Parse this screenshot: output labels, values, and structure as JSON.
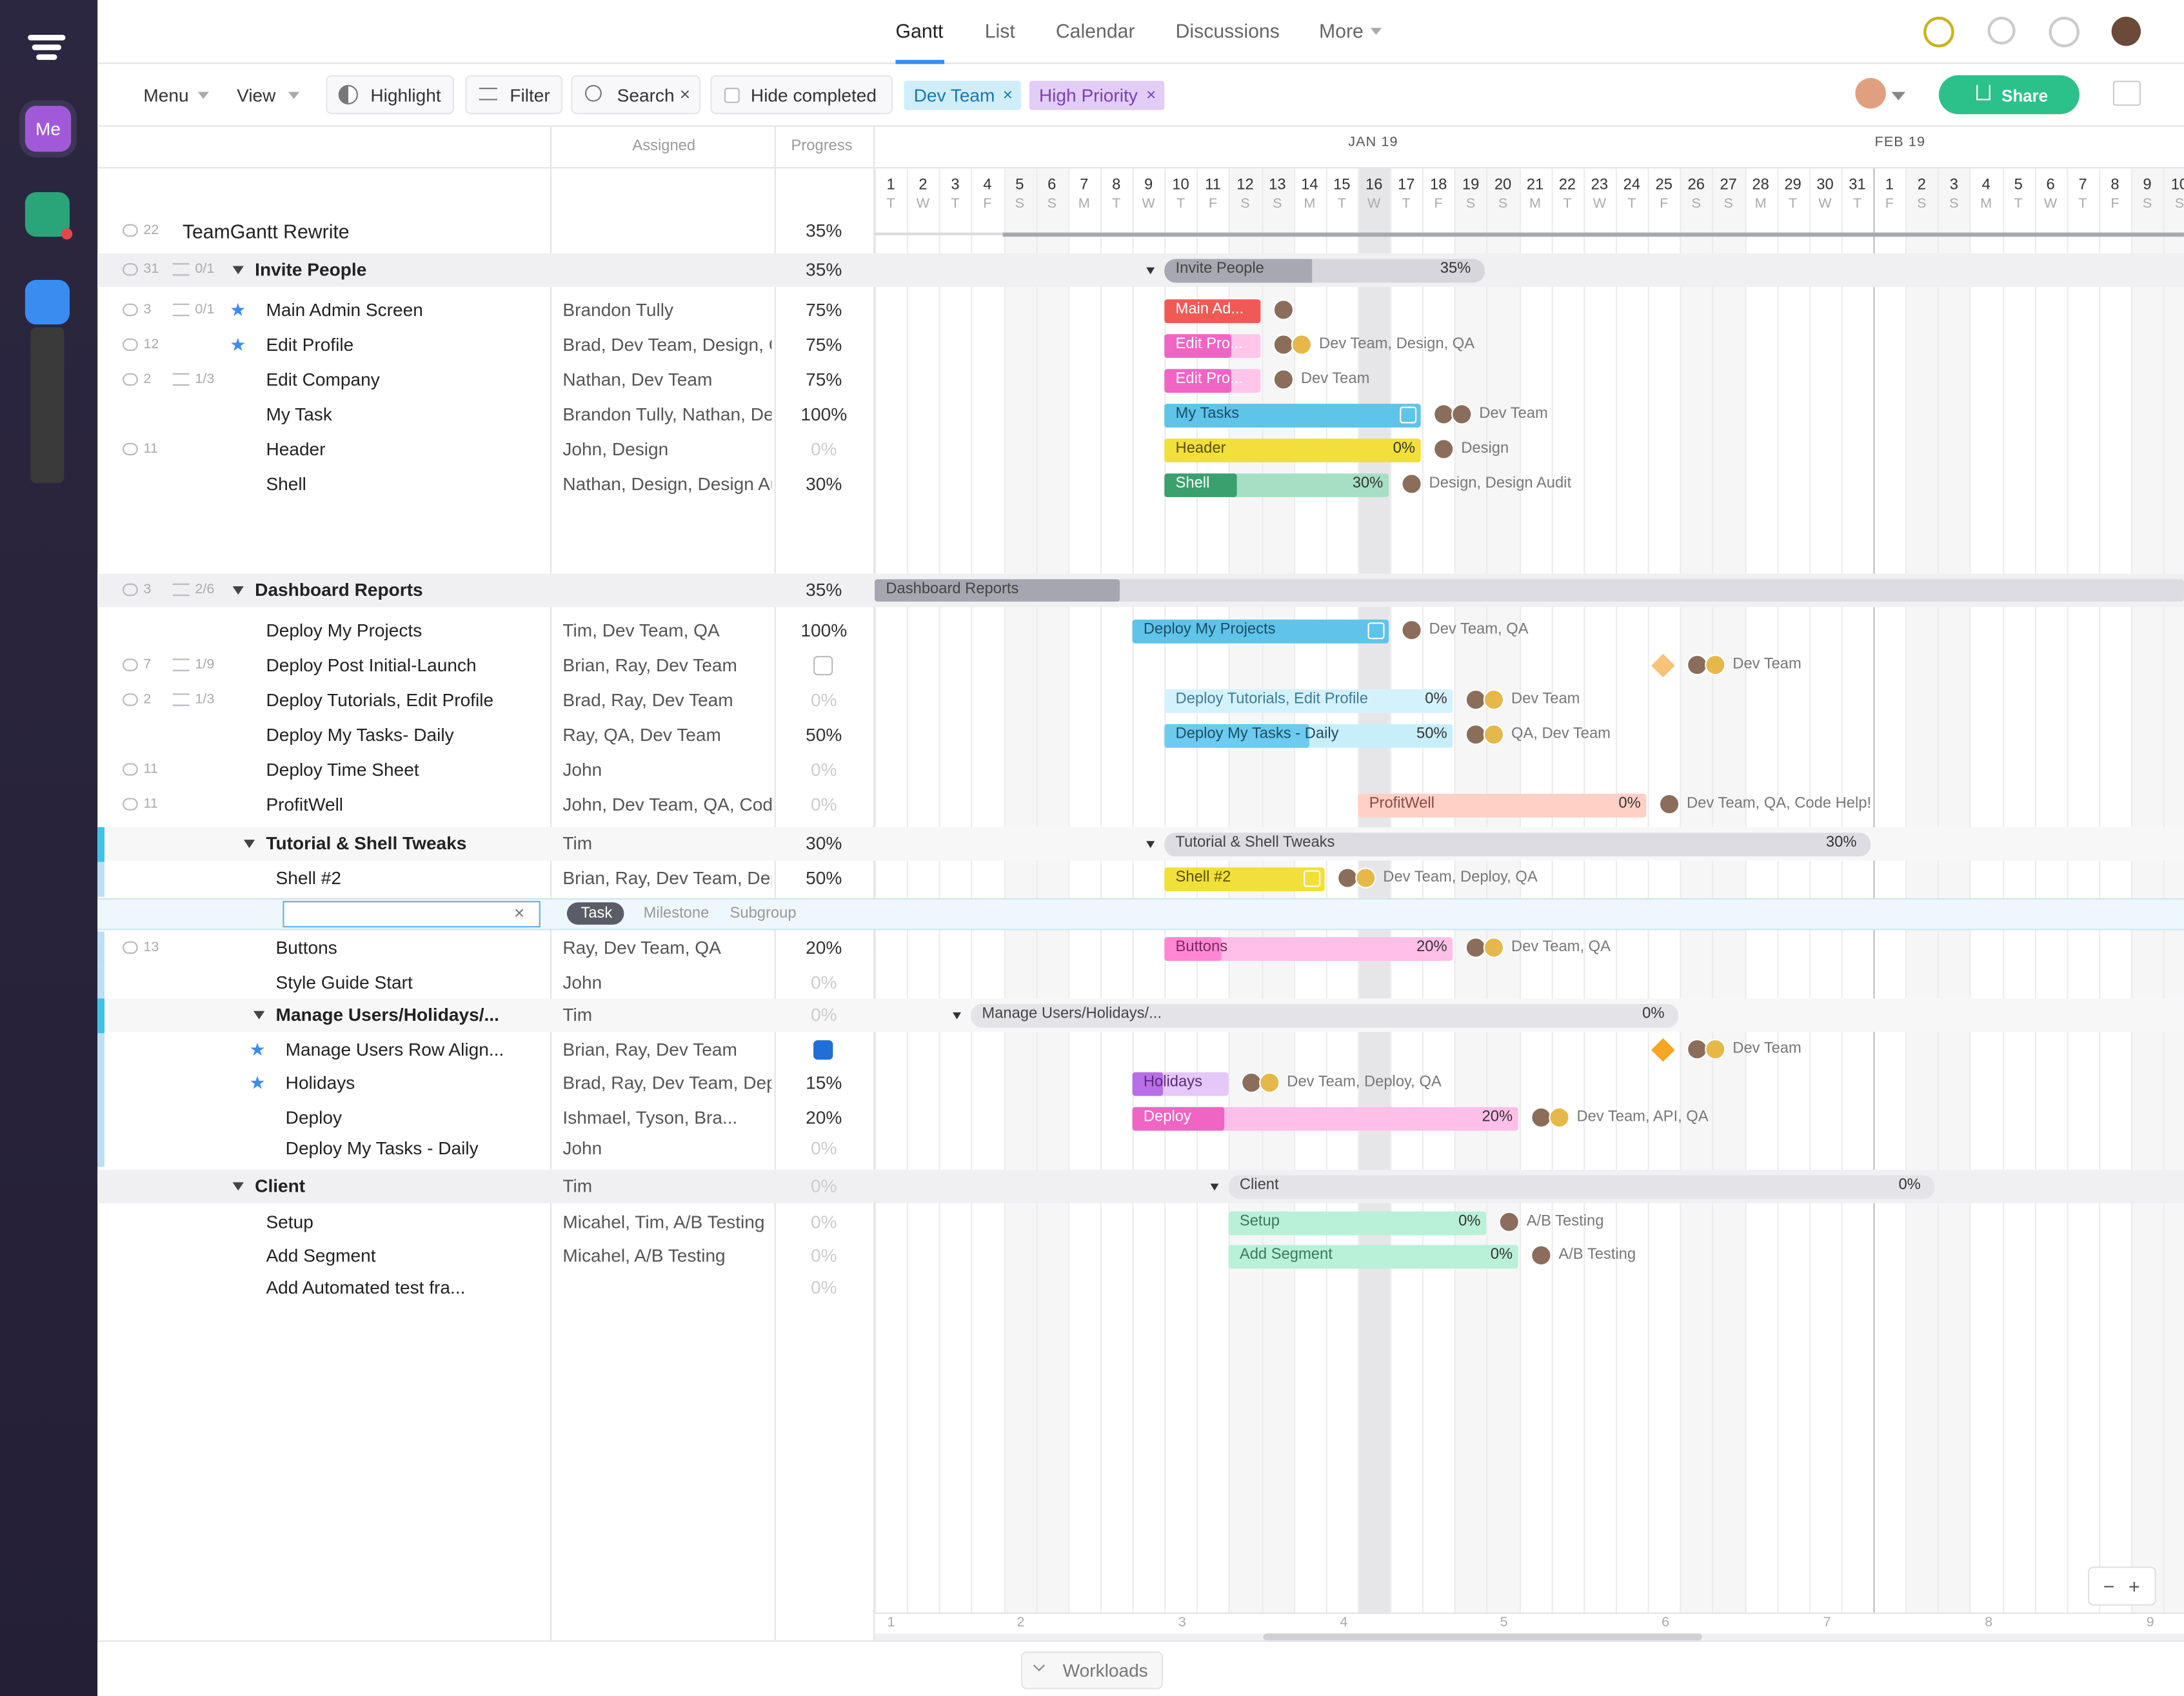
{
  "nav": {
    "tabs": [
      "Gantt",
      "List",
      "Calendar",
      "Discussions",
      "More"
    ]
  },
  "sidebar": {
    "me": "Me"
  },
  "toolbar": {
    "menu": "Menu",
    "view": "View",
    "highlight": "Highlight",
    "filter": "Filter",
    "search": "Search",
    "hide_completed": "Hide completed",
    "tags": [
      "Dev Team",
      "High Priority"
    ],
    "share": "Share"
  },
  "columns": {
    "assigned": "Assigned",
    "progress": "Progress"
  },
  "timeline": {
    "months": [
      "JAN 19",
      "FEB 19"
    ],
    "day_numbers": [
      1,
      2,
      3,
      4,
      5,
      6,
      7,
      8,
      9,
      10,
      11,
      12,
      13,
      14,
      15,
      16,
      17,
      18,
      19,
      20,
      21,
      22,
      23,
      24,
      25,
      26,
      27,
      28,
      29,
      30,
      31,
      1,
      2,
      3,
      4,
      5,
      6,
      7,
      8,
      9,
      10
    ],
    "day_letters": [
      "T",
      "W",
      "T",
      "F",
      "S",
      "S",
      "M",
      "T",
      "W",
      "T",
      "F",
      "S",
      "S",
      "M",
      "T",
      "W",
      "T",
      "F",
      "S",
      "S",
      "M",
      "T",
      "W",
      "T",
      "F",
      "S",
      "S",
      "M",
      "T",
      "W",
      "T",
      "F",
      "S",
      "S",
      "M",
      "T",
      "W",
      "T",
      "F",
      "S",
      "S"
    ],
    "weeks": [
      1,
      2,
      3,
      4,
      5,
      6,
      7,
      8,
      9
    ]
  },
  "rows": [
    {
      "name": "TeamGantt Rewrite",
      "comments": 22,
      "progress": "35%"
    },
    {
      "name": "Invite People",
      "comments": 31,
      "subtasks": "0/1",
      "progress": "35%",
      "bar": {
        "label": "Invite People",
        "percent": "35%"
      }
    },
    {
      "name": "Main Admin Screen",
      "comments": 3,
      "subtasks": "0/1",
      "assigned": "Brandon Tully",
      "progress": "75%",
      "bar": {
        "label": "Main Ad..."
      }
    },
    {
      "name": "Edit Profile",
      "comments": 12,
      "assigned": "Brad, Dev Team, Design, C",
      "progress": "75%",
      "bar": {
        "label": "Edit Pro...",
        "assignees": "Dev Team, Design, QA"
      }
    },
    {
      "name": "Edit Company",
      "comments": 2,
      "subtasks": "1/3",
      "assigned": "Nathan, Dev Team",
      "progress": "75%",
      "bar": {
        "label": "Edit Pro...",
        "assignees": "Dev Team"
      }
    },
    {
      "name": "My Task",
      "assigned": "Brandon Tully, Nathan,  De",
      "progress": "100%",
      "bar": {
        "label": "My Tasks",
        "assignees": "Dev Team"
      }
    },
    {
      "name": "Header",
      "comments": 11,
      "assigned": "John, Design",
      "progress": "0%",
      "bar": {
        "label": "Header",
        "percent": "0%",
        "assignees": "Design"
      }
    },
    {
      "name": "Shell",
      "assigned": "Nathan, Design, Design Au",
      "progress": "30%",
      "bar": {
        "label": "Shell",
        "percent": "30%",
        "assignees": "Design, Design Audit"
      }
    },
    {
      "name": "Dashboard Reports",
      "comments": 3,
      "subtasks": "2/6",
      "progress": "35%",
      "bar": {
        "label": "Dashboard Reports"
      }
    },
    {
      "name": "Deploy My Projects",
      "assigned": "Tim, Dev Team, QA",
      "progress": "100%",
      "bar": {
        "label": "Deploy My Projects",
        "assignees": "Dev Team, QA"
      }
    },
    {
      "name": "Deploy Post Initial-Launch",
      "comments": 7,
      "subtasks": "1/9",
      "assigned": "Brian, Ray, Dev Team",
      "bar": {
        "assignees": "Dev Team"
      }
    },
    {
      "name": "Deploy Tutorials, Edit Profile",
      "comments": 2,
      "subtasks": "1/3",
      "assigned": "Brad, Ray, Dev Team",
      "progress": "0%",
      "bar": {
        "label": "Deploy Tutorials, Edit Profile",
        "percent": "0%",
        "assignees": "Dev Team"
      }
    },
    {
      "name": "Deploy My Tasks- Daily",
      "assigned": "Ray, QA, Dev Team",
      "progress": "50%",
      "bar": {
        "label": "Deploy My Tasks - Daily",
        "percent": "50%",
        "assignees": "QA, Dev Team"
      }
    },
    {
      "name": "Deploy Time Sheet",
      "comments": 11,
      "assigned": "John",
      "progress": "0%"
    },
    {
      "name": "ProfitWell",
      "comments": 11,
      "assigned": "John, Dev Team, QA, Code",
      "progress": "0%",
      "bar": {
        "label": "ProfitWell",
        "percent": "0%",
        "assignees": "Dev Team, QA, Code Help!"
      }
    },
    {
      "name": "Tutorial & Shell Tweaks",
      "assigned": "Tim",
      "progress": "30%",
      "bar": {
        "label": "Tutorial & Shell Tweaks",
        "percent": "30%"
      }
    },
    {
      "name": "Shell #2",
      "assigned": "Brian, Ray, Dev Team, Dep",
      "progress": "50%",
      "bar": {
        "label": "Shell #2",
        "assignees": "Dev Team, Deploy, QA"
      }
    },
    {
      "name": "Buttons",
      "comments": 13,
      "assigned": "Ray, Dev Team, QA",
      "progress": "20%",
      "bar": {
        "label": "Buttons",
        "percent": "20%",
        "assignees": "Dev Team, QA"
      }
    },
    {
      "name": "Style Guide Start",
      "assigned": "John",
      "progress": "0%"
    },
    {
      "name": "Manage Users/Holidays/...",
      "assigned": "Tim",
      "progress": "0%",
      "bar": {
        "label": "Manage Users/Holidays/...",
        "percent": "0%"
      }
    },
    {
      "name": "Manage Users Row Align...",
      "assigned": "Brian, Ray, Dev Team",
      "bar": {
        "assignees": "Dev Team"
      }
    },
    {
      "name": "Holidays",
      "assigned": "Brad, Ray, Dev Team, Dep",
      "progress": "15%",
      "bar": {
        "label": "Holidays",
        "assignees": "Dev Team, Deploy, QA"
      }
    },
    {
      "name": "Deploy",
      "assigned": "Ishmael, Tyson, Bra...",
      "progress": "20%",
      "bar": {
        "label": "Deploy",
        "percent": "20%",
        "assignees": "Dev Team, API, QA"
      }
    },
    {
      "name": "Deploy My Tasks - Daily",
      "assigned": "John",
      "progress": "0%"
    },
    {
      "name": "Client",
      "assigned": "Tim",
      "progress": "0%",
      "bar": {
        "label": "Client",
        "percent": "0%"
      }
    },
    {
      "name": "Setup",
      "assigned": "Micahel, Tim, A/B Testing",
      "progress": "0%",
      "bar": {
        "label": "Setup",
        "percent": "0%",
        "assignees": "A/B Testing"
      }
    },
    {
      "name": "Add Segment",
      "assigned": "Micahel, A/B Testing",
      "progress": "0%",
      "bar": {
        "label": "Add Segment",
        "percent": "0%",
        "assignees": "A/B Testing"
      }
    },
    {
      "name": "Add Automated test fra...",
      "progress": "0%"
    }
  ],
  "new_task": {
    "types": [
      "Task",
      "Milestone",
      "Subgroup"
    ]
  },
  "footer": {
    "workloads": "Workloads"
  }
}
